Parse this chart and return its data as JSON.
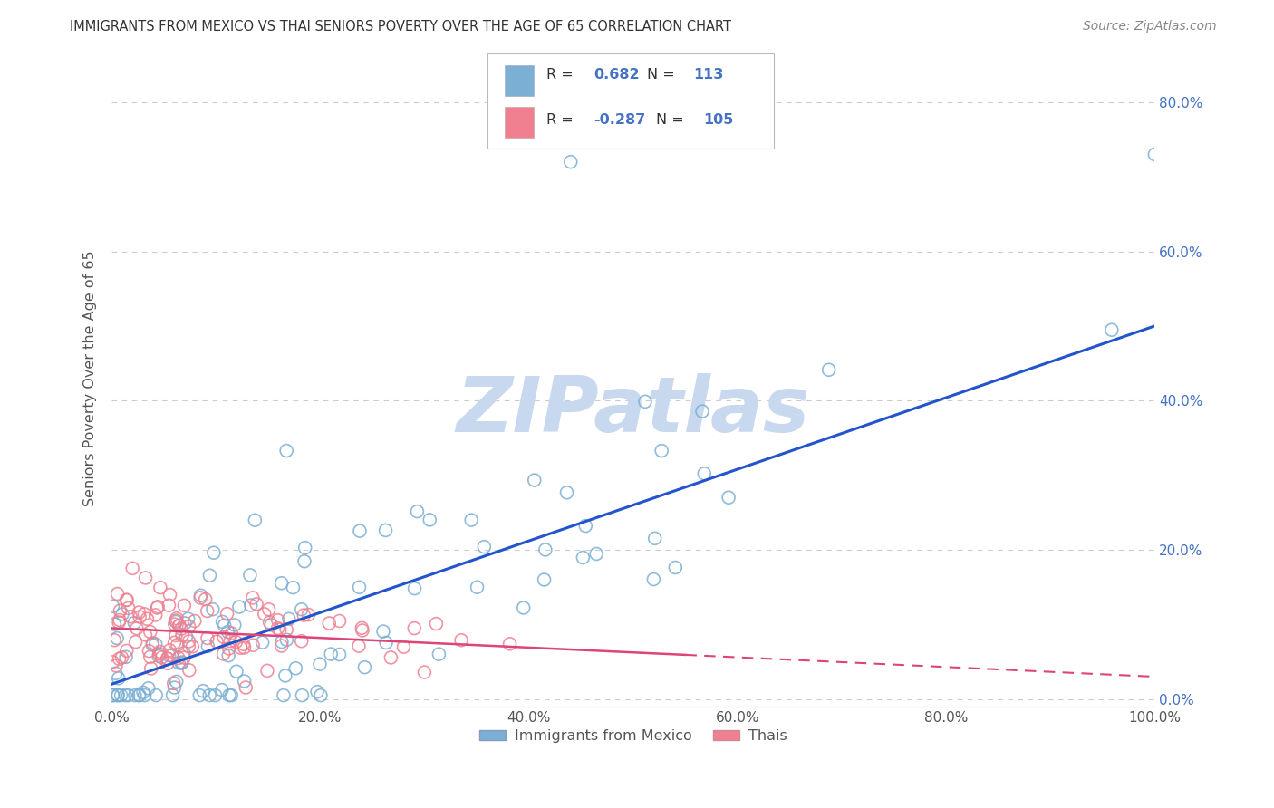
{
  "title": "IMMIGRANTS FROM MEXICO VS THAI SENIORS POVERTY OVER THE AGE OF 65 CORRELATION CHART",
  "source": "Source: ZipAtlas.com",
  "ylabel": "Seniors Poverty Over the Age of 65",
  "watermark": "ZIPatlas",
  "watermark_color": "#c8d8ee",
  "xlim": [
    0,
    1.0
  ],
  "ylim": [
    -0.01,
    0.87
  ],
  "yticks": [
    0.0,
    0.2,
    0.4,
    0.6,
    0.8
  ],
  "yticklabels_right": [
    "0.0%",
    "20.0%",
    "40.0%",
    "60.0%",
    "80.0%"
  ],
  "xticks": [
    0.0,
    0.2,
    0.4,
    0.6,
    0.8,
    1.0
  ],
  "xticklabels": [
    "0.0%",
    "20.0%",
    "40.0%",
    "60.0%",
    "80.0%",
    "100.0%"
  ],
  "blue_line_y_start": 0.02,
  "blue_line_y_end": 0.5,
  "pink_line_x_solid_end": 0.55,
  "pink_line_y_start": 0.095,
  "pink_line_y_end": 0.03,
  "background_color": "#ffffff",
  "grid_color": "#cccccc",
  "title_color": "#333333",
  "axis_color": "#555555",
  "blue_color": "#7bafd4",
  "pink_color": "#f08090",
  "blue_line_color": "#2255cc",
  "pink_line_color": "#dd4477",
  "legend_text_color": "#4472c4",
  "legend_R_blue": "0.682",
  "legend_N_blue": "113",
  "legend_R_pink": "-0.287",
  "legend_N_pink": "105",
  "bottom_legend_blue": "Immigrants from Mexico",
  "bottom_legend_pink": "Thais"
}
